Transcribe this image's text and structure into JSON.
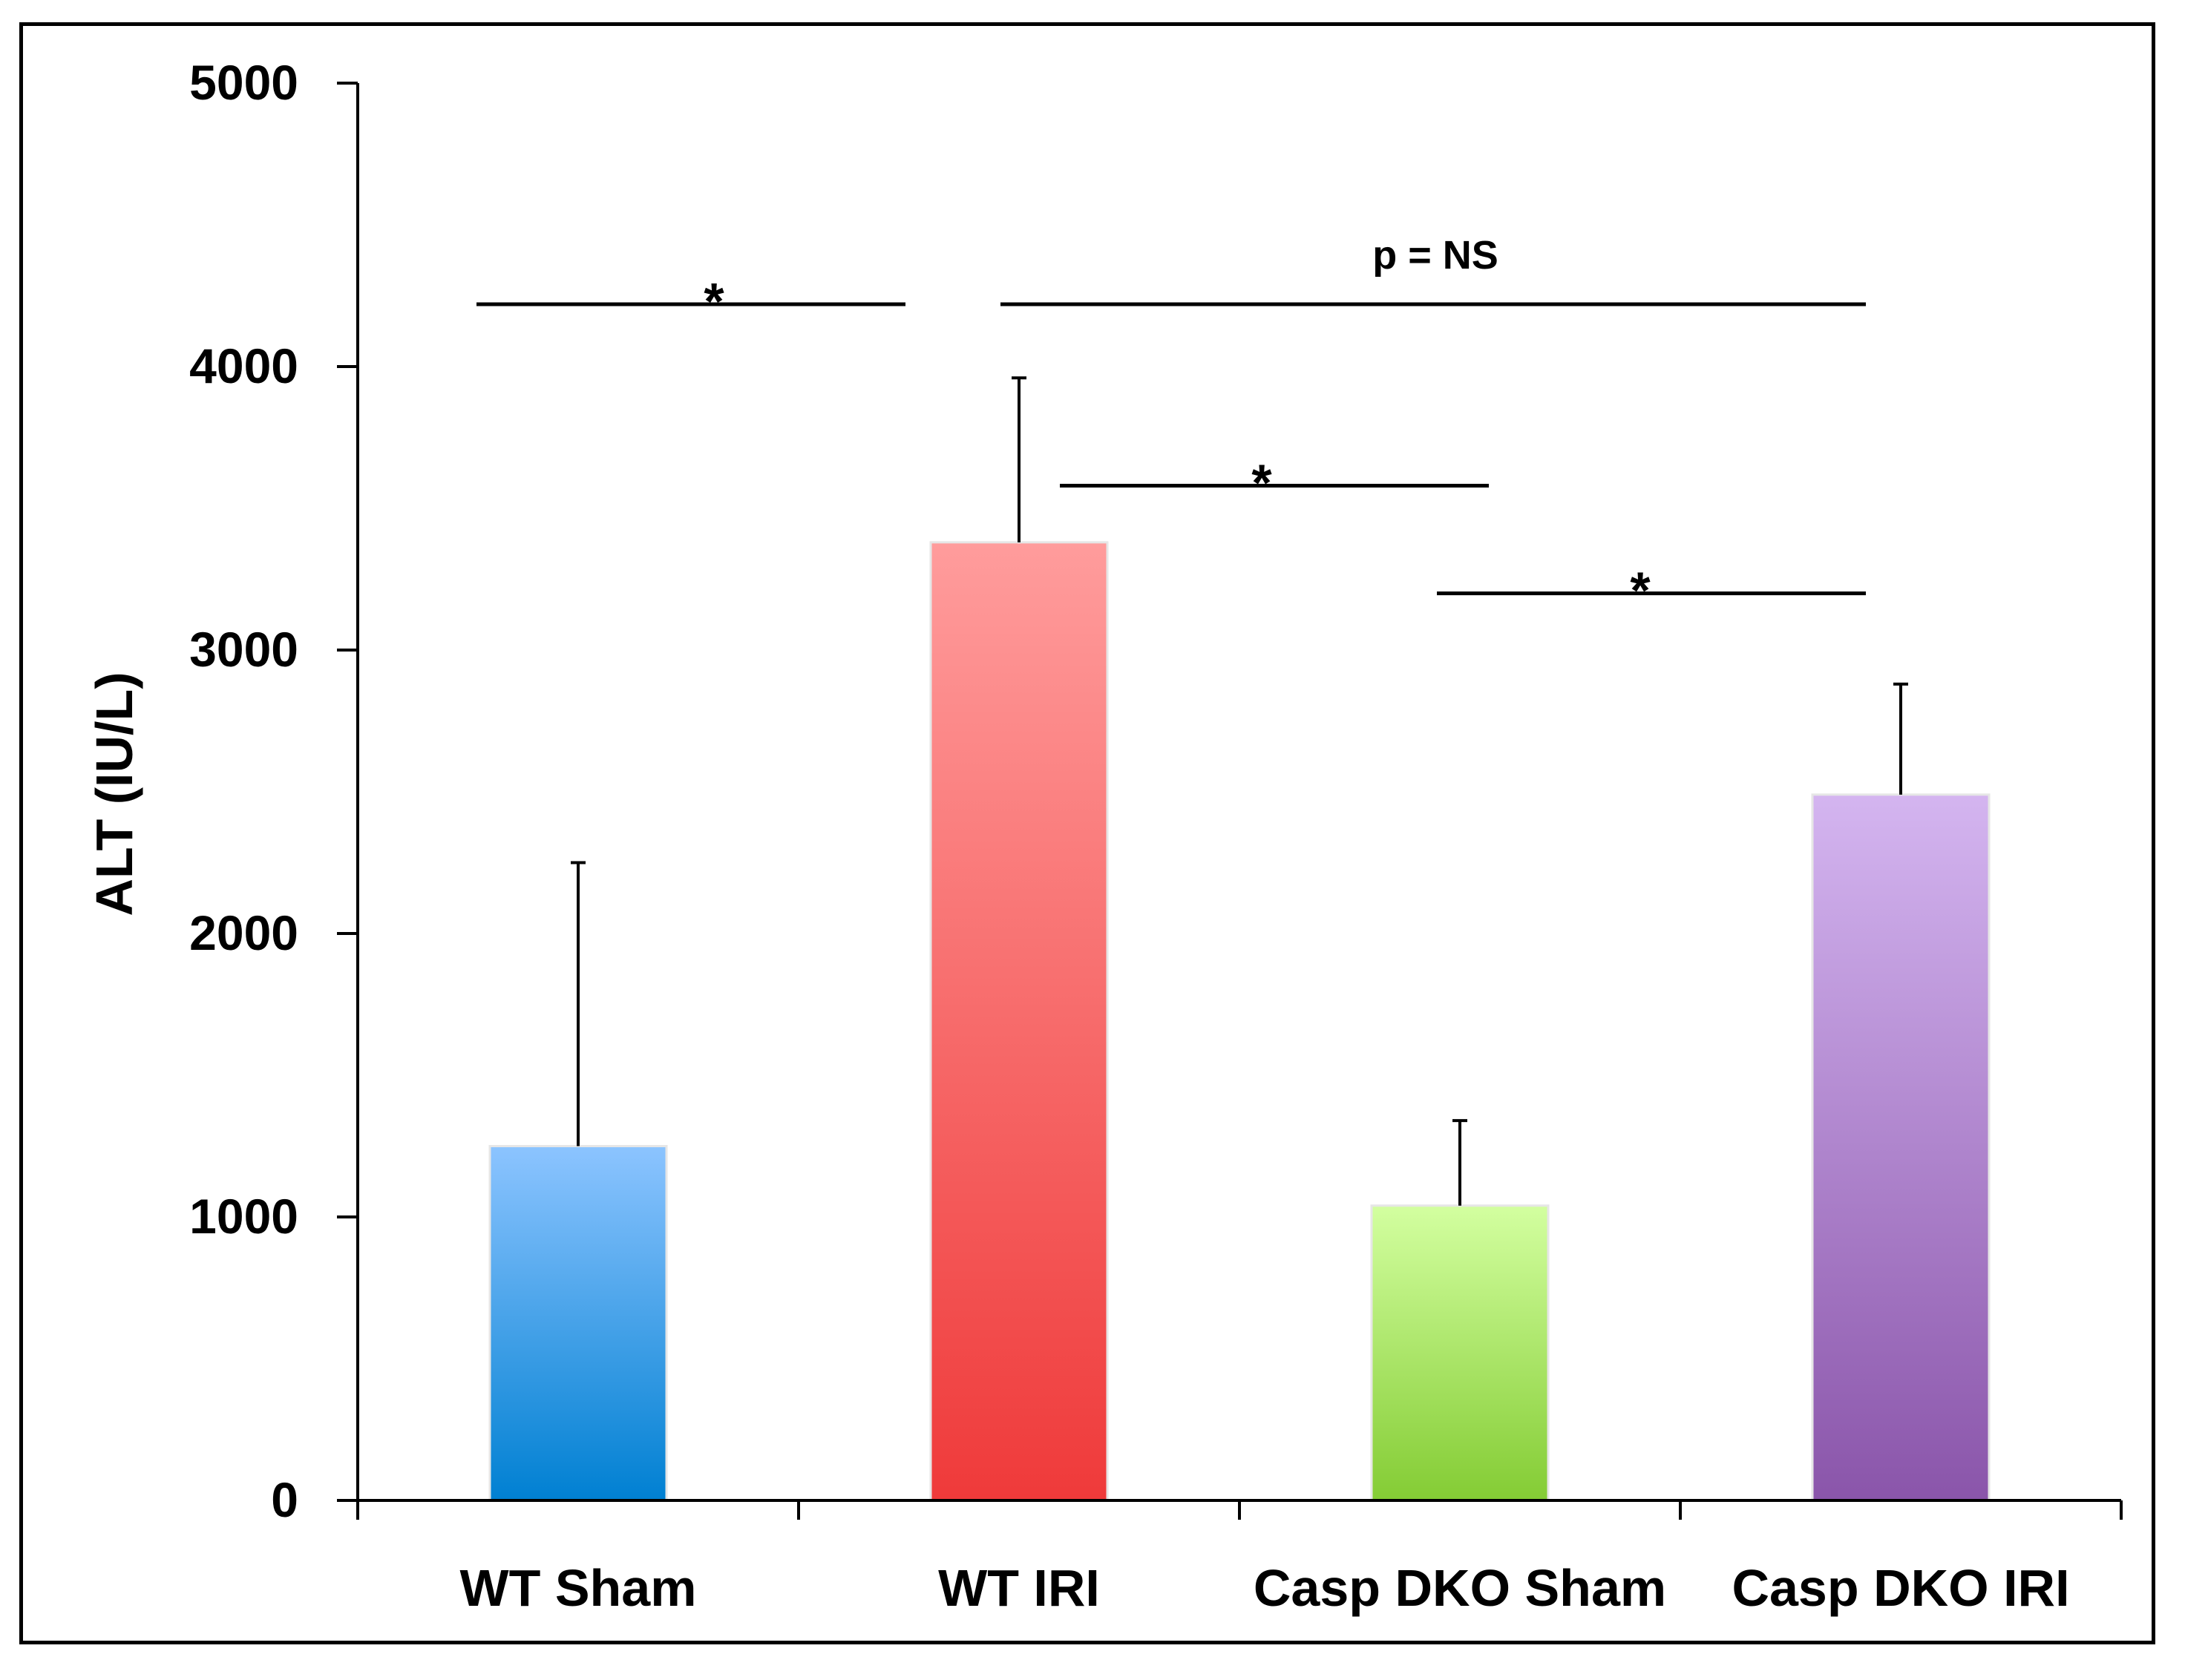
{
  "chart_data": {
    "type": "bar",
    "categories": [
      "WT Sham",
      "WT IRI",
      "Casp DKO Sham",
      "Casp DKO IRI"
    ],
    "values": [
      1250,
      3380,
      1040,
      2490
    ],
    "error_upper": [
      2250,
      3960,
      1340,
      2880
    ],
    "ylabel": "ALT (IU/L)",
    "xlabel": "",
    "ylim": [
      0,
      5000
    ],
    "yticks": [
      "0",
      "1000",
      "2000",
      "3000",
      "4000",
      "5000"
    ],
    "grid": false,
    "colors": [
      {
        "top": "#8cc4ff",
        "bottom": "#0080d2"
      },
      {
        "top": "#ff9c9c",
        "bottom": "#ef3a3a"
      },
      {
        "top": "#d3ffa0",
        "bottom": "#84cc34"
      },
      {
        "top": "#d4b5f0",
        "bottom": "#8a55aa"
      }
    ],
    "annotations": [
      {
        "from": 0,
        "to": 1,
        "label": "*",
        "y": 4220
      },
      {
        "from": 1,
        "to": 3,
        "label": "p = NS",
        "y": 4220
      },
      {
        "from": 1,
        "to": 2,
        "label": "*",
        "y": 3580
      },
      {
        "from": 2,
        "to": 3,
        "label": "*",
        "y": 3200
      }
    ]
  }
}
